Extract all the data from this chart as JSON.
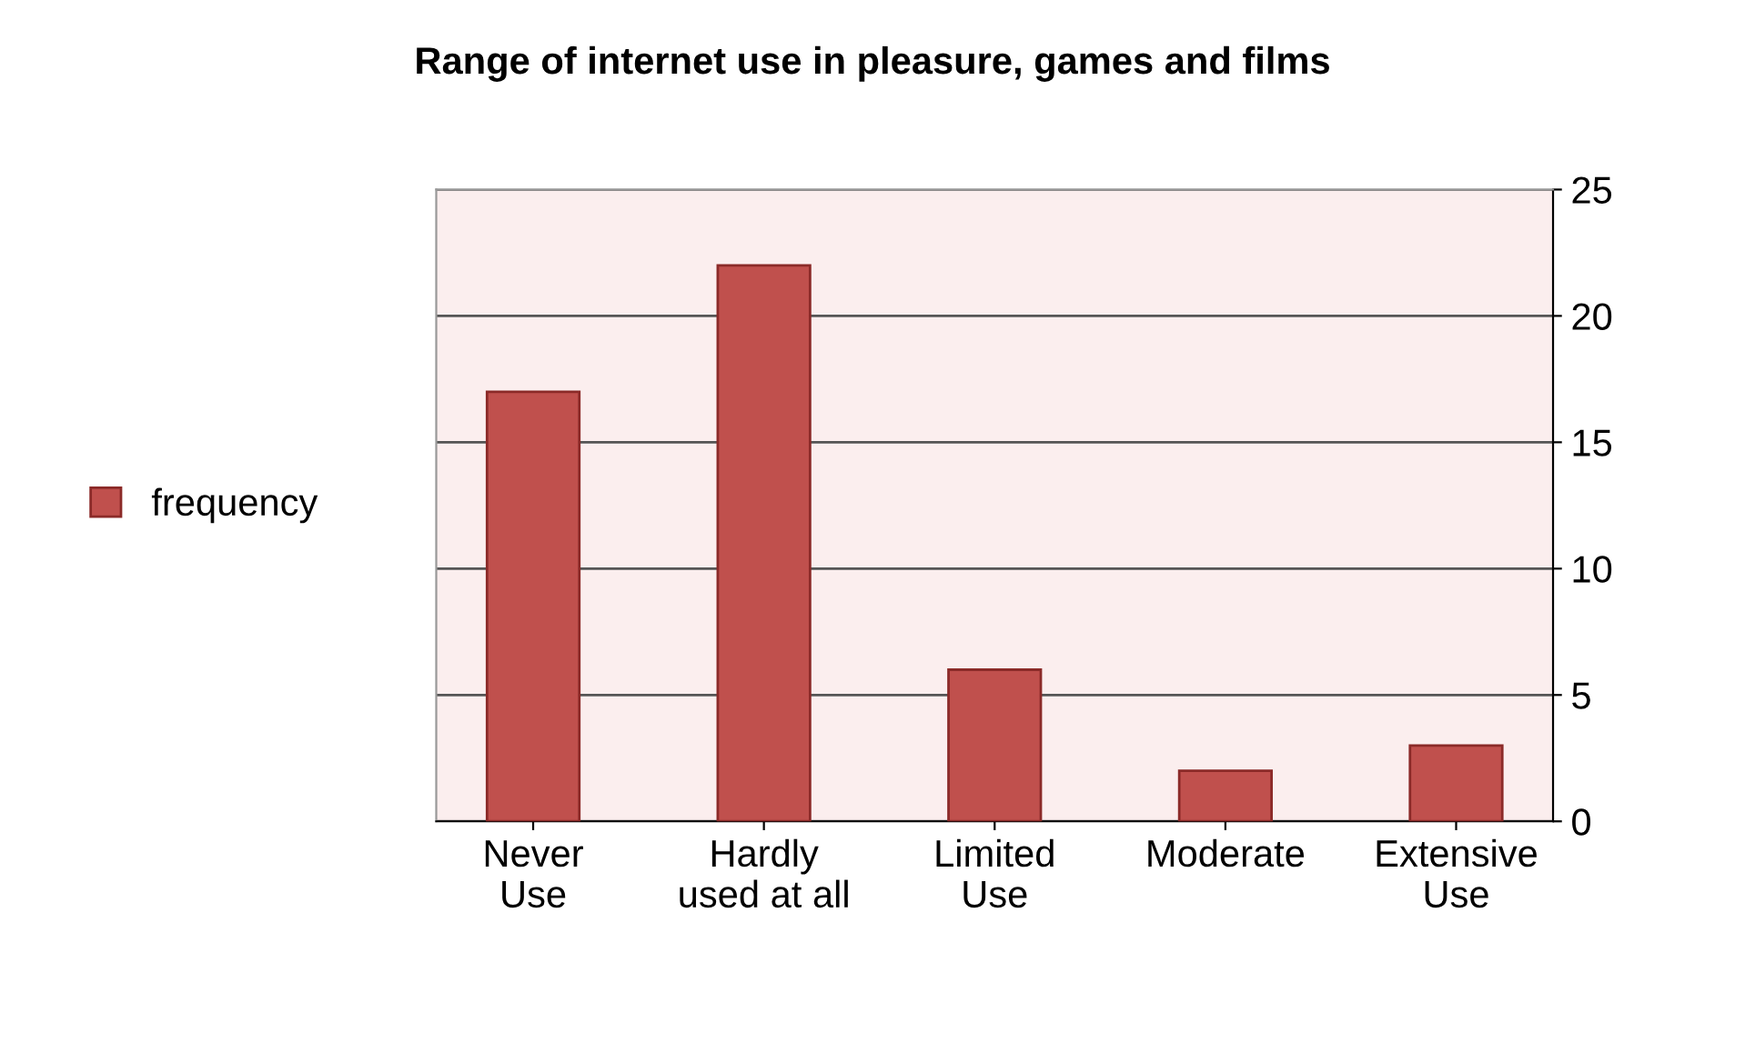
{
  "chart_data": {
    "type": "bar",
    "title": "Range of internet use in pleasure, games and films",
    "categories": [
      "Never\nUse",
      "Hardly\nused at all",
      "Limited\nUse",
      "Moderate",
      "Extensive\nUse"
    ],
    "series": [
      {
        "name": "frequency",
        "color": "#c0504d",
        "values": [
          17,
          22,
          6,
          2,
          3
        ]
      }
    ],
    "ylim": [
      0,
      25
    ],
    "yticks": [
      0,
      5,
      10,
      15,
      20,
      25
    ],
    "grid": "y",
    "legend": "left"
  }
}
